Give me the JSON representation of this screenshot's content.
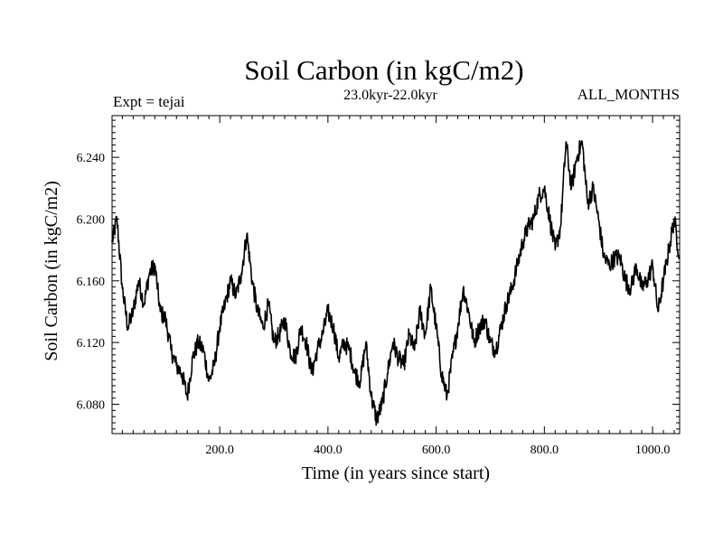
{
  "chart_data": {
    "type": "line",
    "title": "Soil Carbon (in kgC/m2)",
    "subtitle": "23.0kyr-22.0kyr",
    "left_label": "Expt = tejai",
    "right_label": "ALL_MONTHS",
    "xlabel": "Time (in years since start)",
    "ylabel": "Soil Carbon (in kgC/m2)",
    "xlim": [
      1,
      1050
    ],
    "ylim": [
      6.061,
      6.267
    ],
    "x_ticks": [
      200,
      400,
      600,
      800,
      1000
    ],
    "x_tick_labels": [
      "200.0",
      "400.0",
      "600.0",
      "800.0",
      "1000.0"
    ],
    "y_ticks": [
      6.08,
      6.12,
      6.16,
      6.2,
      6.24
    ],
    "y_tick_labels": [
      "6.080",
      "6.120",
      "6.160",
      "6.200",
      "6.240"
    ],
    "line_color": "#000000",
    "series": [
      {
        "name": "Soil Carbon",
        "x": [
          1,
          10,
          20,
          30,
          40,
          50,
          60,
          70,
          80,
          90,
          100,
          110,
          120,
          130,
          140,
          150,
          160,
          170,
          180,
          190,
          200,
          210,
          220,
          230,
          240,
          250,
          260,
          270,
          280,
          290,
          300,
          310,
          320,
          330,
          340,
          350,
          360,
          370,
          380,
          390,
          400,
          410,
          420,
          430,
          440,
          450,
          460,
          470,
          480,
          490,
          500,
          510,
          520,
          530,
          540,
          550,
          560,
          570,
          580,
          590,
          600,
          610,
          620,
          630,
          640,
          650,
          660,
          670,
          680,
          690,
          700,
          710,
          720,
          730,
          740,
          750,
          760,
          770,
          780,
          790,
          800,
          810,
          820,
          830,
          840,
          850,
          860,
          870,
          880,
          890,
          900,
          910,
          920,
          930,
          940,
          950,
          960,
          970,
          980,
          990,
          1000,
          1010,
          1020,
          1030,
          1040,
          1050
        ],
        "values": [
          6.185,
          6.2,
          6.155,
          6.13,
          6.14,
          6.16,
          6.145,
          6.165,
          6.17,
          6.14,
          6.135,
          6.115,
          6.105,
          6.1,
          6.085,
          6.11,
          6.12,
          6.115,
          6.095,
          6.105,
          6.13,
          6.145,
          6.16,
          6.15,
          6.165,
          6.19,
          6.16,
          6.14,
          6.13,
          6.145,
          6.12,
          6.125,
          6.135,
          6.115,
          6.11,
          6.13,
          6.12,
          6.1,
          6.115,
          6.125,
          6.14,
          6.13,
          6.11,
          6.12,
          6.115,
          6.1,
          6.095,
          6.12,
          6.085,
          6.07,
          6.08,
          6.1,
          6.12,
          6.11,
          6.105,
          6.125,
          6.115,
          6.14,
          6.125,
          6.155,
          6.13,
          6.1,
          6.085,
          6.11,
          6.13,
          6.155,
          6.14,
          6.12,
          6.13,
          6.135,
          6.12,
          6.115,
          6.13,
          6.145,
          6.155,
          6.17,
          6.185,
          6.195,
          6.2,
          6.215,
          6.22,
          6.2,
          6.18,
          6.195,
          6.25,
          6.22,
          6.24,
          6.25,
          6.21,
          6.22,
          6.2,
          6.175,
          6.17,
          6.175,
          6.175,
          6.16,
          6.155,
          6.17,
          6.155,
          6.16,
          6.17,
          6.14,
          6.16,
          6.18,
          6.2,
          6.175
        ]
      }
    ]
  }
}
